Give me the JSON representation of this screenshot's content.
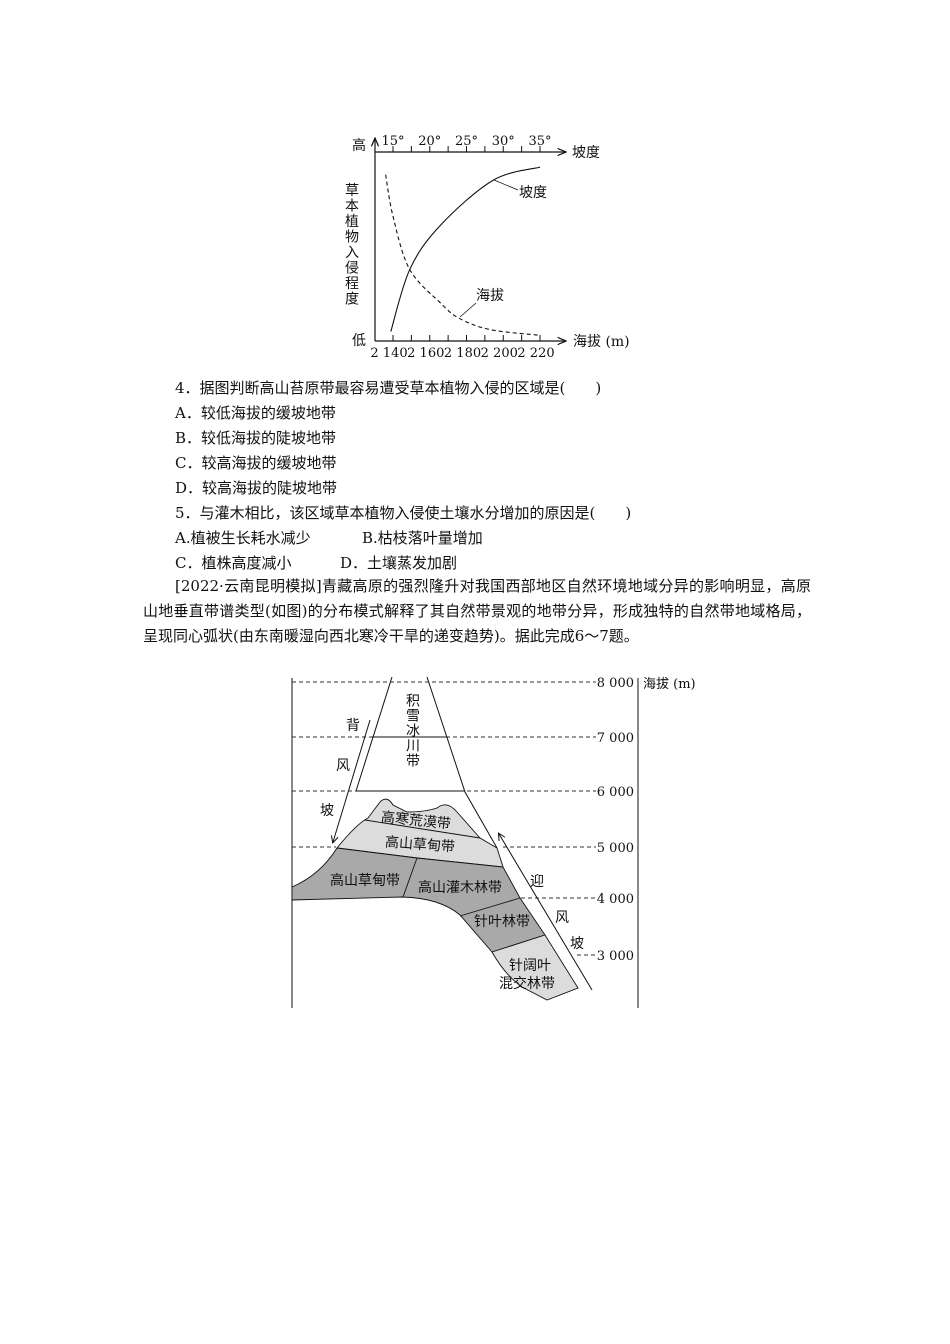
{
  "chart": {
    "y_high": "高",
    "y_low": "低",
    "y_label": "草本植物入侵程度",
    "top_axis_label": "坡度",
    "bottom_axis_label": "海拔 (m)",
    "top_ticks": [
      "15°",
      "20°",
      "25°",
      "30°",
      "35°"
    ],
    "bottom_ticks": [
      "2 140",
      "2 160",
      "2 180",
      "2 200",
      "2 220"
    ],
    "label_slope": "坡度",
    "label_altitude": "海拔"
  },
  "chart_data": {
    "type": "line",
    "title": "",
    "y_axis": {
      "label": "草本植物入侵程度",
      "low": "低",
      "high": "高",
      "range": [
        0,
        1
      ]
    },
    "x_axes": [
      {
        "position": "top",
        "label": "坡度",
        "unit": "°",
        "range": [
          15,
          35
        ],
        "ticks": [
          15,
          20,
          25,
          30,
          35
        ]
      },
      {
        "position": "bottom",
        "label": "海拔 (m)",
        "unit": "m",
        "range": [
          2140,
          2220
        ],
        "ticks": [
          2140,
          2160,
          2180,
          2200,
          2220
        ]
      }
    ],
    "series": [
      {
        "name": "坡度",
        "axis": "top",
        "style": "solid",
        "x": [
          14.7,
          17.3,
          21.4,
          28.6,
          35
        ],
        "y": [
          0.05,
          0.38,
          0.61,
          0.85,
          0.92
        ]
      },
      {
        "name": "海拔",
        "axis": "bottom",
        "style": "dashed",
        "x": [
          2136,
          2140,
          2149,
          2166,
          2176,
          2193,
          2220
        ],
        "y": [
          0.88,
          0.66,
          0.38,
          0.2,
          0.12,
          0.06,
          0.03
        ]
      }
    ],
    "grid": false
  },
  "questions": {
    "q4": "4．据图判断高山苔原带最容易遭受草本植物入侵的区域是(　　)",
    "q4_options": [
      "A．较低海拔的缓坡地带",
      "B．较低海拔的陡坡地带",
      "C．较高海拔的缓坡地带",
      "D．较高海拔的陡坡地带"
    ],
    "q5": "5．与灌木相比，该区域草本植物入侵使土壤水分增加的原因是(　　)",
    "q5_a": "A.植被生长耗水减少",
    "q5_b": "B.枯枝落叶量增加",
    "q5_c": "C．植株高度减小",
    "q5_d": "D．土壤蒸发加剧"
  },
  "passage": "[2022·云南昆明模拟]青藏高原的强烈隆升对我国西部地区自然环境地域分异的影响明显，高原山地垂直带谱类型(如图)的分布模式解释了其自然带景观的地带分异，形成独特的自然带地域格局，呈现同心弧状(由东南暖湿向西北寒冷干旱的递变趋势)。据此完成6～7题。",
  "diagram": {
    "axis_label": "海拔 (m)",
    "elevations": [
      "8 000",
      "7 000",
      "6 000",
      "5 000",
      "4 000",
      "3 000"
    ],
    "glacier": "积雪冰川带",
    "leeward": [
      "背",
      "风",
      "坡"
    ],
    "windward": [
      "迎",
      "风",
      "坡"
    ],
    "zones": {
      "desert": "高寒荒漠带",
      "meadow_upper": "高山草甸带",
      "meadow_lower": "高山草甸带",
      "shrub": "高山灌木林带",
      "conifer": "针叶林带",
      "mixed_1": "针阔叶",
      "mixed_2": "混交林带"
    },
    "colors": {
      "light": "#dcdcdc",
      "dark": "#a9a9a9"
    }
  }
}
